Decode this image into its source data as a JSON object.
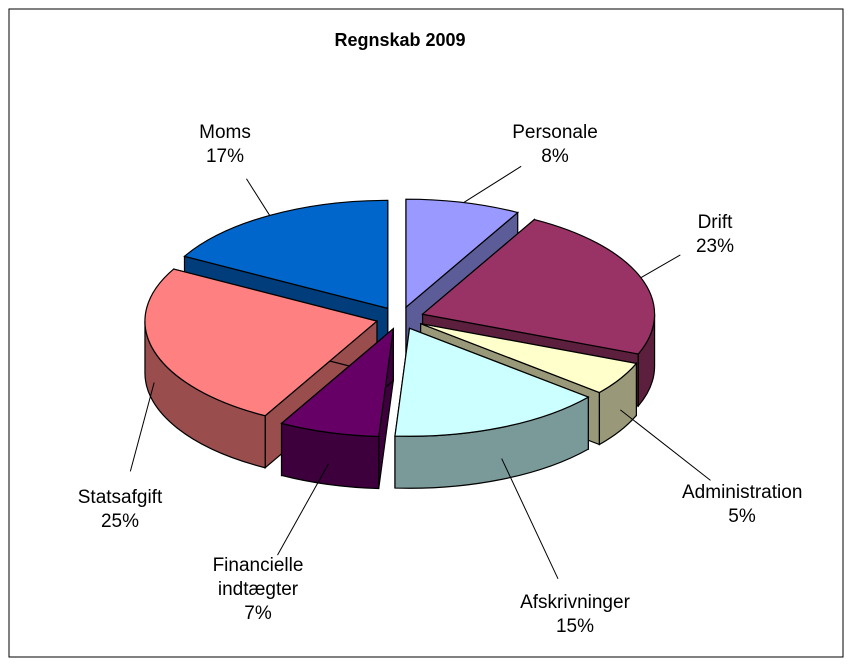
{
  "chart_data": {
    "type": "pie",
    "title": "Regnskab 2009",
    "categories": [
      "Personale",
      "Drift",
      "Administration",
      "Afskrivninger",
      "Financielle indtægter",
      "Statsafgift",
      "Moms"
    ],
    "values": [
      8,
      23,
      5,
      15,
      7,
      25,
      17
    ],
    "value_labels": [
      "8%",
      "23%",
      "5%",
      "15%",
      "7%",
      "25%",
      "17%"
    ],
    "colors": [
      "#9999ff",
      "#993366",
      "#ffffcc",
      "#ccffff",
      "#660066",
      "#ff8080",
      "#0066cc"
    ]
  }
}
